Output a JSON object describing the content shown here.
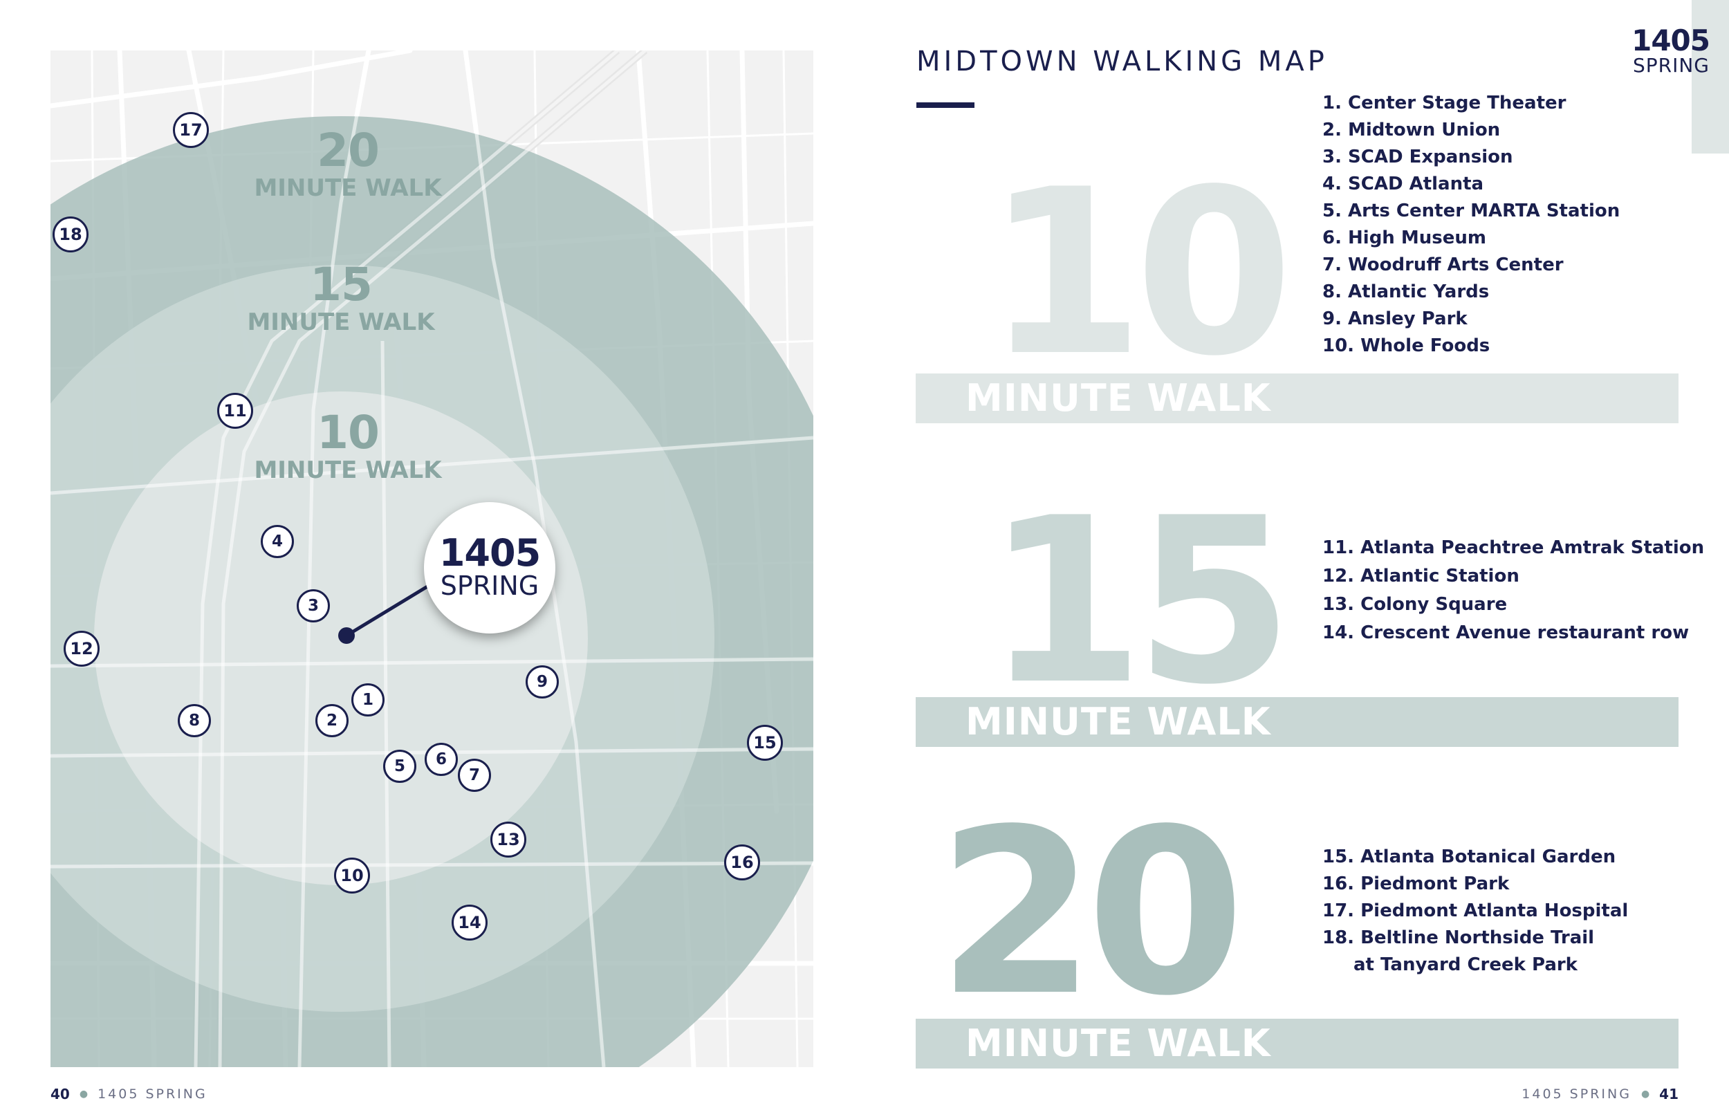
{
  "colors": {
    "navy": "#1a1f4d",
    "sage_light": "#dfe6e5",
    "sage_mid": "#c9d7d5",
    "sage_dark": "#a9bfbc",
    "map_base": "#f2f2f2"
  },
  "map": {
    "rings": [
      {
        "number": "20",
        "label": "MINUTE WALK"
      },
      {
        "number": "15",
        "label": "MINUTE WALK"
      },
      {
        "number": "10",
        "label": "MINUTE WALK"
      }
    ],
    "center": {
      "number": "1405",
      "name": "SPRING"
    },
    "markers": [
      "1",
      "2",
      "3",
      "4",
      "5",
      "6",
      "7",
      "8",
      "9",
      "10",
      "11",
      "12",
      "13",
      "14",
      "15",
      "16",
      "17",
      "18"
    ]
  },
  "footer_left": {
    "page": "40",
    "title": "1405 SPRING"
  },
  "footer_right": {
    "page": "41",
    "title": "1405 SPRING"
  },
  "brand": {
    "number": "1405",
    "name": "SPRING"
  },
  "title": "MIDTOWN WALKING MAP",
  "sections": [
    {
      "number": "10",
      "band_label": "MINUTE WALK",
      "items": [
        "1. Center Stage Theater",
        "2. Midtown Union",
        "3. SCAD Expansion",
        "4. SCAD Atlanta",
        "5. Arts Center MARTA Station",
        "6. High Museum",
        "7. Woodruff Arts Center",
        "8. Atlantic Yards",
        "9. Ansley Park",
        "10. Whole Foods"
      ]
    },
    {
      "number": "15",
      "band_label": "MINUTE WALK",
      "items": [
        "11. Atlanta Peachtree Amtrak Station",
        "12. Atlantic Station",
        "13. Colony Square",
        "14. Crescent Avenue restaurant row"
      ]
    },
    {
      "number": "20",
      "band_label": "MINUTE WALK",
      "items": [
        "15. Atlanta Botanical Garden",
        "16. Piedmont Park",
        "17. Piedmont Atlanta Hospital",
        "18. Beltline Northside Trail",
        "at Tanyard Creek Park"
      ]
    }
  ]
}
